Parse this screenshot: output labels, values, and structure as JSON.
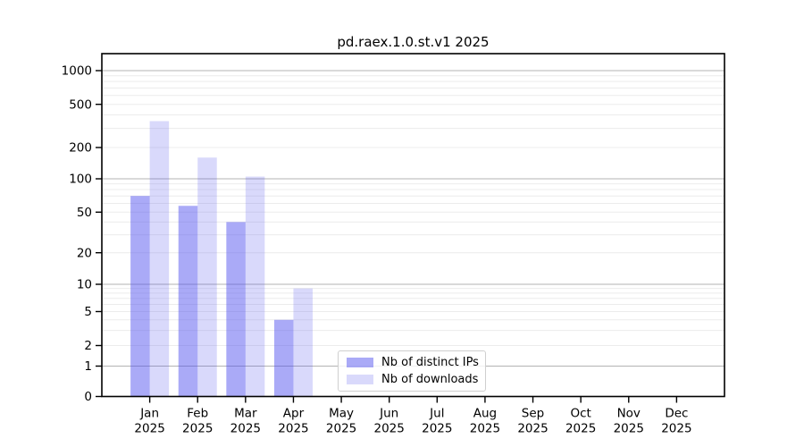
{
  "chart_data": {
    "type": "bar",
    "title": "pd.raex.1.0.st.v1 2025",
    "year": "2025",
    "categories": [
      "Jan",
      "Feb",
      "Mar",
      "Apr",
      "May",
      "Jun",
      "Jul",
      "Aug",
      "Sep",
      "Oct",
      "Nov",
      "Dec"
    ],
    "series": [
      {
        "name": "Nb of distinct IPs",
        "color": "#4b4bed",
        "fill_opacity": 0.47,
        "values": [
          70,
          57,
          40,
          4,
          0,
          0,
          0,
          0,
          0,
          0,
          0,
          0
        ]
      },
      {
        "name": "Nb of downloads",
        "color": "#4b4bed",
        "fill_opacity": 0.21,
        "values": [
          350,
          160,
          105,
          9,
          0,
          0,
          0,
          0,
          0,
          0,
          0,
          0
        ]
      }
    ],
    "yscale": "symlog",
    "yticks": [
      0,
      1,
      2,
      5,
      10,
      20,
      50,
      100,
      200,
      500,
      1000
    ],
    "ylim": [
      0,
      1500
    ],
    "xlabel": "",
    "ylabel": "",
    "grid": true,
    "legend_position": "lower center"
  }
}
